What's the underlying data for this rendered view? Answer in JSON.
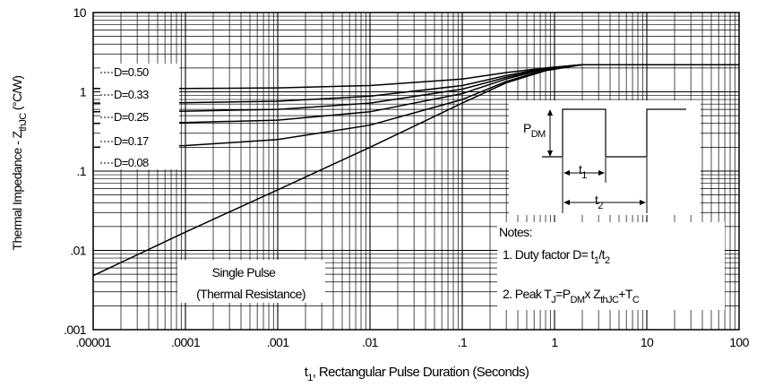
{
  "chart_data": {
    "type": "line",
    "xscale": "log",
    "yscale": "log",
    "xlim": [
      1e-05,
      100
    ],
    "ylim": [
      0.001,
      10
    ],
    "grid": true,
    "xlabel": {
      "prefix": "t",
      "sub": "1",
      "rest": ",  Rectangular Pulse Duration (Seconds)"
    },
    "ylabel": {
      "prefix": "Thermal Impedance - Z",
      "sub": "thJC",
      "rest": " (°C/W)"
    },
    "xticks": [
      {
        "value": 1e-05,
        "label": ".00001"
      },
      {
        "value": 0.0001,
        "label": ".0001"
      },
      {
        "value": 0.001,
        "label": ".001"
      },
      {
        "value": 0.01,
        "label": ".01"
      },
      {
        "value": 0.1,
        "label": ".1"
      },
      {
        "value": 1,
        "label": "1"
      },
      {
        "value": 10,
        "label": "10"
      },
      {
        "value": 100,
        "label": "100"
      }
    ],
    "yticks": [
      {
        "value": 0.001,
        "label": ".001"
      },
      {
        "value": 0.01,
        "label": ".01"
      },
      {
        "value": 0.1,
        "label": ".1"
      },
      {
        "value": 1,
        "label": "1"
      },
      {
        "value": 10,
        "label": "10"
      }
    ],
    "series": [
      {
        "name": "D=0.50",
        "x": [
          1e-05,
          0.0001,
          0.001,
          0.01,
          0.1,
          0.3,
          0.8,
          2,
          100
        ],
        "y": [
          1.1,
          1.1,
          1.12,
          1.2,
          1.45,
          1.75,
          2.0,
          2.2,
          2.2
        ]
      },
      {
        "name": "D=0.33",
        "x": [
          1e-05,
          0.0001,
          0.001,
          0.01,
          0.1,
          0.3,
          0.8,
          2,
          100
        ],
        "y": [
          0.72,
          0.73,
          0.76,
          0.88,
          1.2,
          1.6,
          2.0,
          2.2,
          2.2
        ]
      },
      {
        "name": "D=0.25",
        "x": [
          1e-05,
          0.0001,
          0.001,
          0.01,
          0.1,
          0.3,
          0.8,
          2,
          100
        ],
        "y": [
          0.56,
          0.57,
          0.6,
          0.72,
          1.08,
          1.52,
          1.98,
          2.2,
          2.2
        ]
      },
      {
        "name": "D=0.17",
        "x": [
          1e-05,
          0.0001,
          0.001,
          0.01,
          0.1,
          0.3,
          0.8,
          2,
          100
        ],
        "y": [
          0.4,
          0.41,
          0.44,
          0.56,
          0.95,
          1.45,
          1.95,
          2.2,
          2.2
        ]
      },
      {
        "name": "D=0.08",
        "x": [
          1e-05,
          0.0001,
          0.001,
          0.01,
          0.1,
          0.3,
          0.8,
          2,
          100
        ],
        "y": [
          0.2,
          0.21,
          0.25,
          0.38,
          0.8,
          1.35,
          1.9,
          2.2,
          2.2
        ]
      },
      {
        "name": "Single Pulse",
        "x": [
          1e-05,
          0.0001,
          0.001,
          0.01,
          0.1,
          0.3,
          0.8,
          2,
          100
        ],
        "y": [
          0.0048,
          0.017,
          0.058,
          0.2,
          0.72,
          1.3,
          1.85,
          2.2,
          2.2
        ]
      }
    ],
    "legend": [
      {
        "label": "D=0.50",
        "series": "D=0.50"
      },
      {
        "label": "D=0.33",
        "series": "D=0.33"
      },
      {
        "label": "D=0.25",
        "series": "D=0.25"
      },
      {
        "label": "D=0.17",
        "series": "D=0.17"
      },
      {
        "label": "D=0.08",
        "series": "D=0.08"
      }
    ],
    "single_pulse_label": [
      "Single Pulse",
      "(Thermal Resistance)"
    ],
    "inset": {
      "pdm": "P",
      "pdm_sub": "DM",
      "t1": "t",
      "t1_sub": "1",
      "t2": "t",
      "t2_sub": "2"
    },
    "notes": {
      "title": "Notes:",
      "line1": [
        "1. Duty factor D= t",
        "1",
        "/t",
        "2"
      ],
      "line2": [
        "2. Peak T",
        "J",
        "=P",
        "DM",
        "x Z",
        "thJC",
        "+T",
        "C"
      ]
    }
  }
}
